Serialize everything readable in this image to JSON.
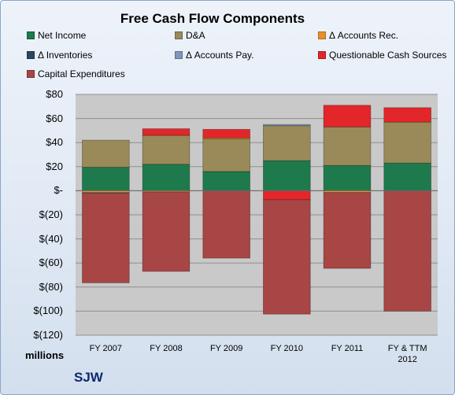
{
  "chart_data": {
    "type": "bar",
    "stacked": true,
    "title": "Free Cash Flow Components",
    "units_label": "millions",
    "company_label": "SJW",
    "categories": [
      "FY 2007",
      "FY 2008",
      "FY 2009",
      "FY 2010",
      "FY 2011",
      "FY & TTM|2012"
    ],
    "ylim": [
      -120,
      80
    ],
    "yticks": [
      80,
      60,
      40,
      20,
      0,
      -20,
      -40,
      -60,
      -80,
      -100,
      -120
    ],
    "ytick_labels": [
      "$80",
      "$60",
      "$40",
      "$20",
      "$-",
      "$(20)",
      "$(40)",
      "$(60)",
      "$(80)",
      "$(100)",
      "$(120)"
    ],
    "grid": true,
    "series": [
      {
        "name": "Net Income",
        "color": "#1e7a4c",
        "values": [
          19.5,
          22,
          16,
          25,
          21,
          23
        ]
      },
      {
        "name": "D&A",
        "color": "#9a8a5a",
        "values": [
          22.5,
          24,
          27,
          29,
          32,
          34
        ]
      },
      {
        "name": "Δ Accounts Rec.",
        "color": "#e8902a",
        "values": [
          -1.5,
          -1,
          1,
          0,
          -1.5,
          0
        ]
      },
      {
        "name": "Δ Inventories",
        "color": "#2e4560",
        "values": [
          0,
          0,
          0,
          0,
          0,
          0
        ]
      },
      {
        "name": "Δ Accounts Pay.",
        "color": "#7e97b8",
        "values": [
          -0.5,
          0,
          0,
          1,
          0,
          0
        ]
      },
      {
        "name": "Questionable Cash Sources",
        "color": "#e3262a",
        "values": [
          0,
          5.5,
          7,
          -7.5,
          18,
          12
        ]
      },
      {
        "name": "Capital Expenditures",
        "color": "#a84545",
        "values": [
          -74.5,
          -66,
          -56,
          -95,
          -63,
          -100
        ]
      }
    ]
  }
}
